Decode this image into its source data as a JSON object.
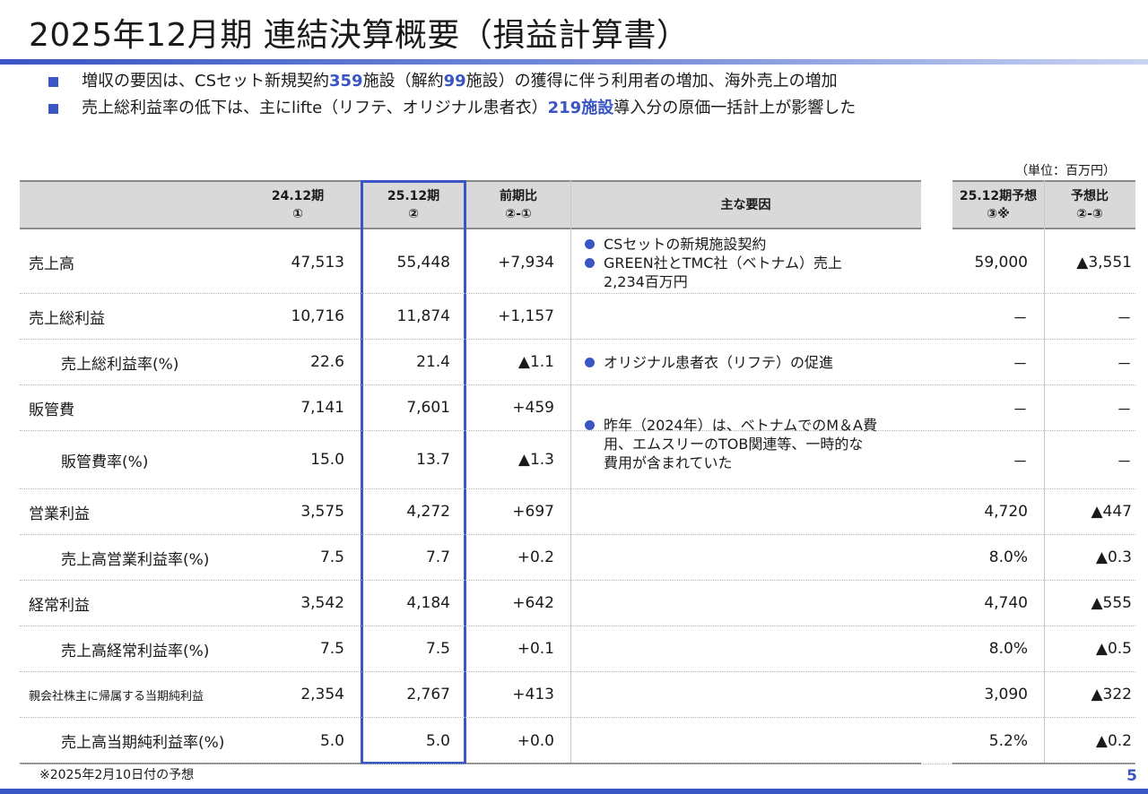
{
  "title": "2025年12月期 連結決算概要（損益計算書）",
  "bullets": [
    [
      {
        "t": "増収の要因は、CSセット新規契約"
      },
      {
        "t": "359",
        "hl": true
      },
      {
        "t": "施設（解約"
      },
      {
        "t": "99",
        "hl": true
      },
      {
        "t": "施設）の獲得に伴う利用者の増加、海外売上の増加"
      }
    ],
    [
      {
        "t": "売上総利益率の低下は、主にlifte（リフテ、オリジナル患者衣）"
      },
      {
        "t": "219施設",
        "hl": true
      },
      {
        "t": "導入分の原価一括計上が影響した"
      }
    ]
  ],
  "unit": "（単位：百万円）",
  "headers": {
    "prev": [
      "24.12期",
      "①"
    ],
    "curr": [
      "25.12期",
      "②"
    ],
    "yoy": [
      "前期比",
      "②-①"
    ],
    "reasons": [
      "主な要因"
    ],
    "forecast": [
      "25.12期予想",
      "③※"
    ],
    "vs_forecast": [
      "予想比",
      "②-③"
    ]
  },
  "rows": [
    {
      "label": "売上高",
      "indent": false,
      "small": false,
      "prev": "47,513",
      "curr": "55,448",
      "yoy": "+7,934",
      "fc": "59,000",
      "diff": "▲3,551"
    },
    {
      "label": "売上総利益",
      "indent": false,
      "small": false,
      "prev": "10,716",
      "curr": "11,874",
      "yoy": "+1,157",
      "fc": "－",
      "diff": "－"
    },
    {
      "label": "売上総利益率(%)",
      "indent": true,
      "small": false,
      "prev": "22.6",
      "curr": "21.4",
      "yoy": "▲1.1",
      "fc": "－",
      "diff": "－"
    },
    {
      "label": "販管費",
      "indent": false,
      "small": false,
      "prev": "7,141",
      "curr": "7,601",
      "yoy": "+459",
      "fc": "－",
      "diff": "－"
    },
    {
      "label": "販管費率(%)",
      "indent": true,
      "small": false,
      "prev": "15.0",
      "curr": "13.7",
      "yoy": "▲1.3",
      "fc": "－",
      "diff": "－"
    },
    {
      "label": "営業利益",
      "indent": false,
      "small": false,
      "prev": "3,575",
      "curr": "4,272",
      "yoy": "+697",
      "fc": "4,720",
      "diff": "▲447"
    },
    {
      "label": "売上高営業利益率(%)",
      "indent": true,
      "small": false,
      "prev": "7.5",
      "curr": "7.7",
      "yoy": "+0.2",
      "fc": "8.0%",
      "diff": "▲0.3"
    },
    {
      "label": "経常利益",
      "indent": false,
      "small": false,
      "prev": "3,542",
      "curr": "4,184",
      "yoy": "+642",
      "fc": "4,740",
      "diff": "▲555"
    },
    {
      "label": "売上高経常利益率(%)",
      "indent": true,
      "small": false,
      "prev": "7.5",
      "curr": "7.5",
      "yoy": "+0.1",
      "fc": "8.0%",
      "diff": "▲0.5"
    },
    {
      "label": "親会社株主に帰属する当期純利益",
      "indent": false,
      "small": true,
      "prev": "2,354",
      "curr": "2,767",
      "yoy": "+413",
      "fc": "3,090",
      "diff": "▲322"
    },
    {
      "label": "売上高当期純利益率(%)",
      "indent": true,
      "small": false,
      "prev": "5.0",
      "curr": "5.0",
      "yoy": "+0.0",
      "fc": "5.2%",
      "diff": "▲0.2"
    }
  ],
  "reasons": [
    {
      "row": 0,
      "items": [
        "CSセットの新規施設契約",
        "GREEN社とTMC社（ベトナム）売上\n2,234百万円"
      ]
    },
    {
      "row": 2,
      "items": [
        "オリジナル患者衣（リフテ）の促進"
      ]
    },
    {
      "row": 4,
      "items": [
        "昨年（2024年）は、ベトナムでのM＆A費\n用、エムスリーのTOB関連等、一時的な\n費用が含まれていた"
      ]
    }
  ],
  "footnote": "※2025年2月10日付の予想",
  "page_number": "5"
}
